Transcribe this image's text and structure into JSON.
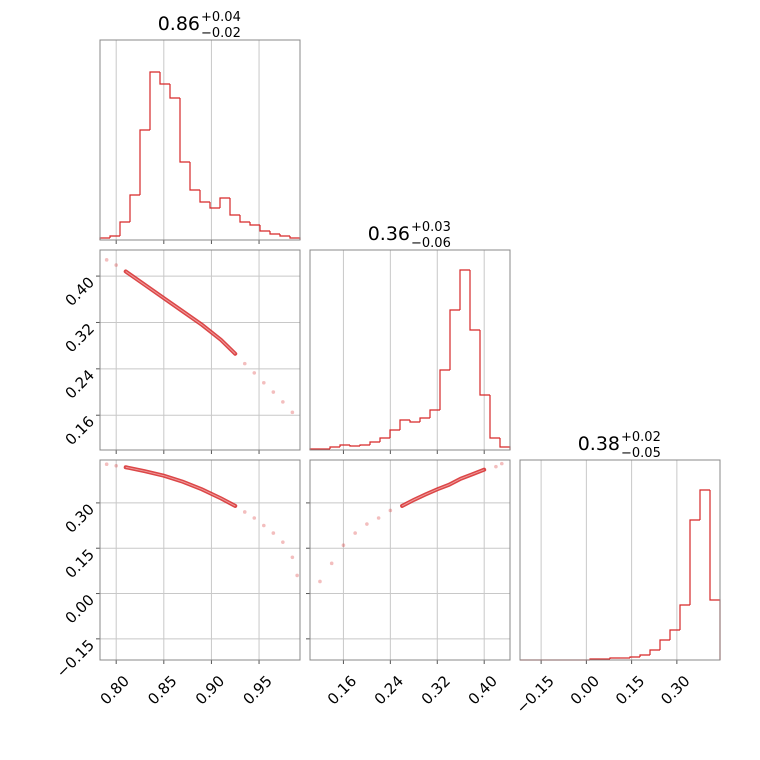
{
  "chart_data": [
    {
      "type": "histogram",
      "title": {
        "value": "0.86",
        "upper": "+0.04",
        "lower": "−0.02"
      },
      "bins": [
        0.783,
        0.7935,
        0.804,
        0.8145,
        0.825,
        0.8355,
        0.846,
        0.8565,
        0.867,
        0.8775,
        0.888,
        0.8985,
        0.909,
        0.9195,
        0.93,
        0.9405,
        0.951,
        0.9615,
        0.972,
        0.9825,
        0.993
      ],
      "values": [
        2,
        4,
        18,
        45,
        110,
        168,
        156,
        142,
        78,
        50,
        38,
        32,
        42,
        25,
        18,
        15,
        9,
        6,
        4,
        2
      ],
      "color": "#d62728",
      "xlim": [
        0.783,
        0.993
      ],
      "ylim": [
        0,
        200
      ],
      "xticks": [
        0.8,
        0.85,
        0.9,
        0.95
      ],
      "grid": true
    },
    {
      "type": "scatter",
      "color": "#d62728",
      "series": [
        {
          "kind": "contour",
          "x": [
            0.81,
            0.83,
            0.85,
            0.87,
            0.89,
            0.91,
            0.925
          ],
          "values": [
            0.408,
            0.385,
            0.362,
            0.339,
            0.316,
            0.29,
            0.266
          ]
        },
        {
          "kind": "points",
          "x": [
            0.79,
            0.8,
            0.935,
            0.945,
            0.955,
            0.965,
            0.975,
            0.985
          ],
          "values": [
            0.428,
            0.419,
            0.249,
            0.233,
            0.216,
            0.2,
            0.183,
            0.165
          ]
        }
      ],
      "xlim": [
        0.783,
        0.993
      ],
      "ylim": [
        0.1,
        0.445
      ],
      "xticks": [
        0.8,
        0.85,
        0.9,
        0.95
      ],
      "yticks": [
        0.16,
        0.24,
        0.32,
        {
          "value": 0.4,
          "label": "0.40"
        }
      ],
      "grid": true
    },
    {
      "type": "histogram",
      "title": {
        "value": "0.36",
        "upper": "+0.03",
        "lower": "−0.06"
      },
      "bins": [
        0.103,
        0.12005,
        0.1371,
        0.15415,
        0.1712,
        0.18825,
        0.2053,
        0.22235,
        0.2394,
        0.25645,
        0.2735,
        0.29055,
        0.3076,
        0.32465,
        0.3417,
        0.35875,
        0.3758,
        0.39285,
        0.4099,
        0.42695,
        0.444
      ],
      "values": [
        1,
        1,
        3,
        5,
        4,
        5,
        8,
        12,
        20,
        30,
        28,
        32,
        40,
        80,
        140,
        180,
        120,
        55,
        12,
        3
      ],
      "color": "#d62728",
      "xlim": [
        0.103,
        0.444
      ],
      "ylim": [
        0,
        200
      ],
      "xticks": [
        0.16,
        0.24,
        0.32,
        0.4
      ],
      "grid": true
    },
    {
      "type": "scatter",
      "color": "#d62728",
      "series": [
        {
          "kind": "contour",
          "x": [
            0.81,
            0.83,
            0.85,
            0.87,
            0.89,
            0.91,
            0.925
          ],
          "values": [
            0.418,
            0.405,
            0.39,
            0.37,
            0.345,
            0.315,
            0.29
          ]
        },
        {
          "kind": "points",
          "x": [
            0.79,
            0.8,
            0.935,
            0.945,
            0.955,
            0.965,
            0.975,
            0.985,
            0.99
          ],
          "values": [
            0.428,
            0.423,
            0.27,
            0.25,
            0.225,
            0.2,
            0.17,
            0.12,
            0.06
          ]
        }
      ],
      "xlim": [
        0.783,
        0.993
      ],
      "ylim": [
        -0.22,
        0.442
      ],
      "xticks": [
        {
          "value": 0.8,
          "label": "0.80"
        },
        0.85,
        {
          "value": 0.9,
          "label": "0.90"
        },
        0.95
      ],
      "yticks": [
        {
          "value": 0.3,
          "label": "0.30"
        },
        0.15,
        {
          "value": 0,
          "label": "0.00"
        },
        {
          "value": -0.15,
          "label": "−0.15"
        }
      ],
      "grid": true
    },
    {
      "type": "scatter",
      "color": "#d62728",
      "series": [
        {
          "kind": "contour",
          "x": [
            0.26,
            0.28,
            0.3,
            0.32,
            0.34,
            0.36,
            0.38,
            0.4
          ],
          "values": [
            0.29,
            0.31,
            0.328,
            0.345,
            0.36,
            0.38,
            0.395,
            0.41
          ]
        },
        {
          "kind": "points",
          "x": [
            0.12,
            0.14,
            0.16,
            0.18,
            0.2,
            0.22,
            0.24,
            0.42,
            0.43
          ],
          "values": [
            0.04,
            0.1,
            0.16,
            0.2,
            0.23,
            0.25,
            0.275,
            0.42,
            0.43
          ]
        }
      ],
      "xlim": [
        0.103,
        0.444
      ],
      "ylim": [
        -0.22,
        0.442
      ],
      "xticks": [
        0.16,
        0.24,
        0.32,
        {
          "value": 0.4,
          "label": "0.40"
        }
      ],
      "yticks": [
        0.3,
        0.15,
        0,
        -0.15
      ],
      "grid": true
    },
    {
      "type": "histogram",
      "title": {
        "value": "0.38",
        "upper": "+0.02",
        "lower": "−0.05"
      },
      "bins": [
        -0.22,
        -0.18685,
        -0.1537,
        -0.12055,
        -0.0874,
        -0.05425,
        -0.0211,
        0.01205,
        0.0452,
        0.07835,
        0.1115,
        0.14465,
        0.1778,
        0.21095,
        0.2441,
        0.27725,
        0.3104,
        0.34355,
        0.3767,
        0.40985,
        0.443
      ],
      "values": [
        0,
        0,
        0,
        0,
        0,
        0,
        0,
        1,
        1,
        2,
        2,
        3,
        5,
        10,
        20,
        30,
        55,
        140,
        170,
        60
      ],
      "color": "#d62728",
      "xlim": [
        -0.22,
        0.443
      ],
      "ylim": [
        0,
        200
      ],
      "xticks": [
        {
          "value": -0.15,
          "label": "−0.15"
        },
        {
          "value": 0,
          "label": "0.00"
        },
        0.15,
        {
          "value": 0.3,
          "label": "0.30"
        }
      ],
      "grid": true
    }
  ]
}
